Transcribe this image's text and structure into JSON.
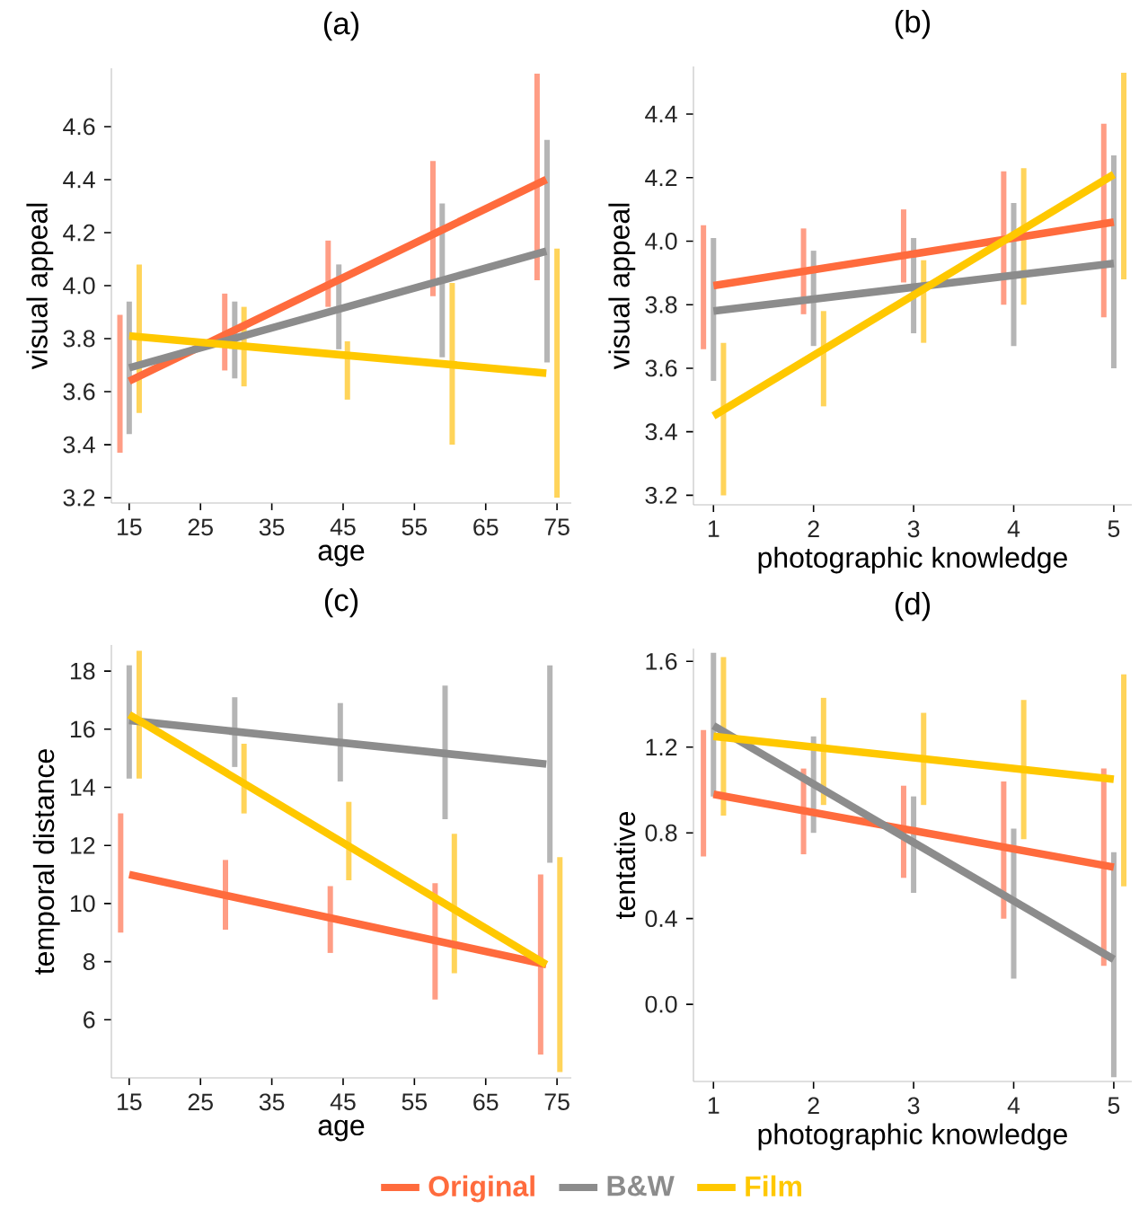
{
  "chart_data": [
    {
      "type": "line",
      "title": "(a)",
      "xlabel": "age",
      "ylabel": "visual appeal",
      "xlim": [
        12.5,
        77
      ],
      "ylim": [
        3.18,
        4.82
      ],
      "xticks": [
        15,
        25,
        35,
        45,
        55,
        65,
        75
      ],
      "yticks": [
        {
          "value": 3.2,
          "label": "3.2"
        },
        {
          "value": 3.4,
          "label": "3.4"
        },
        {
          "value": 3.6,
          "label": "3.6"
        },
        {
          "value": 3.8,
          "label": "3.8"
        },
        {
          "value": 4.0,
          "label": "4.0"
        },
        {
          "value": 4.2,
          "label": "4.2"
        },
        {
          "value": 4.4,
          "label": "4.4"
        },
        {
          "value": 4.6,
          "label": "4.6"
        }
      ],
      "series": [
        {
          "type": "bar",
          "color": "#ff9d85",
          "x": [
            13.7,
            28.4,
            42.9,
            57.6,
            72.2
          ],
          "base": [
            3.37,
            3.68,
            3.92,
            3.96,
            4.02
          ],
          "values": [
            0.52,
            0.29,
            0.25,
            0.51,
            0.78
          ]
        },
        {
          "type": "bar",
          "color": "#b5b5b5",
          "x": [
            15,
            29.8,
            44.4,
            58.9,
            73.6
          ],
          "base": [
            3.44,
            3.65,
            3.76,
            3.73,
            3.71
          ],
          "values": [
            0.5,
            0.29,
            0.32,
            0.58,
            0.84
          ]
        },
        {
          "type": "bar",
          "color": "#ffd45a",
          "x": [
            16.4,
            31.1,
            45.6,
            60.3,
            75
          ],
          "base": [
            3.52,
            3.62,
            3.57,
            3.4,
            3.2
          ],
          "values": [
            0.56,
            0.3,
            0.22,
            0.61,
            0.94
          ]
        },
        {
          "color": "#ff6b3d",
          "x": [
            15,
            73.5
          ],
          "values": [
            3.64,
            4.4
          ]
        },
        {
          "color": "#8c8c8c",
          "x": [
            15,
            73.5
          ],
          "values": [
            3.69,
            4.13
          ]
        },
        {
          "color": "#ffc800",
          "x": [
            15,
            73.5
          ],
          "values": [
            3.81,
            3.67
          ]
        }
      ]
    },
    {
      "type": "line",
      "title": "(b)",
      "xlabel": "photographic knowledge",
      "ylabel": "visual appeal",
      "xlim": [
        0.8,
        5.18
      ],
      "ylim": [
        3.17,
        4.55
      ],
      "xticks": [
        1,
        2,
        3,
        4,
        5
      ],
      "yticks": [
        {
          "value": 3.2,
          "label": "3.2"
        },
        {
          "value": 3.4,
          "label": "3.4"
        },
        {
          "value": 3.6,
          "label": "3.6"
        },
        {
          "value": 3.8,
          "label": "3.8"
        },
        {
          "value": 4.0,
          "label": "4.0"
        },
        {
          "value": 4.2,
          "label": "4.2"
        },
        {
          "value": 4.4,
          "label": "4.4"
        }
      ],
      "series": [
        {
          "type": "bar",
          "color": "#ff9d85",
          "x": [
            0.9,
            1.9,
            2.9,
            3.9,
            4.9
          ],
          "base": [
            3.66,
            3.77,
            3.87,
            3.8,
            3.76
          ],
          "values": [
            0.39,
            0.27,
            0.23,
            0.42,
            0.61
          ]
        },
        {
          "type": "bar",
          "color": "#b5b5b5",
          "x": [
            1,
            2,
            3,
            4,
            5
          ],
          "base": [
            3.56,
            3.67,
            3.71,
            3.67,
            3.6
          ],
          "values": [
            0.45,
            0.3,
            0.3,
            0.45,
            0.67
          ]
        },
        {
          "type": "bar",
          "color": "#ffd45a",
          "x": [
            1.1,
            2.1,
            3.1,
            4.1,
            5.1
          ],
          "base": [
            3.2,
            3.48,
            3.68,
            3.8,
            3.88
          ],
          "values": [
            0.48,
            0.3,
            0.26,
            0.43,
            0.65
          ]
        },
        {
          "color": "#ff6b3d",
          "x": [
            1,
            5
          ],
          "values": [
            3.86,
            4.06
          ]
        },
        {
          "color": "#8c8c8c",
          "x": [
            1,
            5
          ],
          "values": [
            3.78,
            3.93
          ]
        },
        {
          "color": "#ffc800",
          "x": [
            1,
            5
          ],
          "values": [
            3.45,
            4.21
          ]
        }
      ]
    },
    {
      "type": "line",
      "title": "(c)",
      "xlabel": "age",
      "ylabel": "temporal distance",
      "xlim": [
        12.5,
        77
      ],
      "ylim": [
        4.0,
        18.9
      ],
      "xticks": [
        15,
        25,
        35,
        45,
        55,
        65,
        75
      ],
      "yticks": [
        6,
        8,
        10,
        12,
        14,
        16,
        18
      ],
      "series": [
        {
          "type": "bar",
          "color": "#ff9d85",
          "x": [
            13.8,
            28.5,
            43.2,
            57.9,
            72.7
          ],
          "base": [
            9.0,
            9.1,
            8.3,
            6.7,
            4.8
          ],
          "values": [
            4.1,
            2.4,
            2.3,
            4.0,
            6.2
          ]
        },
        {
          "type": "bar",
          "color": "#b5b5b5",
          "x": [
            15,
            29.8,
            44.6,
            59.3,
            74
          ],
          "base": [
            14.3,
            14.7,
            14.2,
            12.9,
            11.4
          ],
          "values": [
            3.9,
            2.4,
            2.7,
            4.6,
            6.8
          ]
        },
        {
          "type": "bar",
          "color": "#ffd45a",
          "x": [
            16.4,
            31.1,
            45.8,
            60.6,
            75.4
          ],
          "base": [
            14.3,
            13.1,
            10.8,
            7.6,
            4.2
          ],
          "values": [
            4.4,
            2.4,
            2.7,
            4.8,
            7.4
          ]
        },
        {
          "color": "#ff6b3d",
          "x": [
            15,
            73.5
          ],
          "values": [
            11.0,
            7.9
          ]
        },
        {
          "color": "#8c8c8c",
          "x": [
            15,
            73.5
          ],
          "values": [
            16.3,
            14.8
          ]
        },
        {
          "color": "#ffc800",
          "x": [
            15,
            73.5
          ],
          "values": [
            16.5,
            7.9
          ]
        }
      ]
    },
    {
      "type": "line",
      "title": "(d)",
      "xlabel": "photographic knowledge",
      "ylabel": "tentative",
      "xlim": [
        0.8,
        5.18
      ],
      "ylim": [
        -0.36,
        1.66
      ],
      "legend": "bottom",
      "xticks": [
        1,
        2,
        3,
        4,
        5
      ],
      "yticks": [
        {
          "value": 0.0,
          "label": "0.0"
        },
        {
          "value": 0.4,
          "label": "0.4"
        },
        {
          "value": 0.8,
          "label": "0.8"
        },
        {
          "value": 1.2,
          "label": "1.2"
        },
        {
          "value": 1.6,
          "label": "1.6"
        }
      ],
      "series": [
        {
          "type": "bar",
          "color": "#ff9d85",
          "x": [
            0.9,
            1.9,
            2.9,
            3.9,
            4.9
          ],
          "base": [
            0.69,
            0.7,
            0.59,
            0.4,
            0.18
          ],
          "values": [
            0.59,
            0.4,
            0.43,
            0.64,
            0.92
          ]
        },
        {
          "type": "bar",
          "color": "#b5b5b5",
          "x": [
            1,
            2,
            3,
            4,
            5
          ],
          "base": [
            0.97,
            0.8,
            0.52,
            0.12,
            -0.34
          ],
          "values": [
            0.67,
            0.45,
            0.45,
            0.7,
            1.05
          ]
        },
        {
          "type": "bar",
          "color": "#ffd45a",
          "x": [
            1.1,
            2.1,
            3.1,
            4.1,
            5.1
          ],
          "base": [
            0.88,
            0.93,
            0.93,
            0.77,
            0.55
          ],
          "values": [
            0.74,
            0.5,
            0.43,
            0.65,
            0.99
          ]
        },
        {
          "name": "Original",
          "color": "#ff6b3d",
          "x": [
            1,
            5
          ],
          "values": [
            0.98,
            0.64
          ]
        },
        {
          "name": "B&W",
          "color": "#8c8c8c",
          "x": [
            1,
            5
          ],
          "values": [
            1.3,
            0.21
          ]
        },
        {
          "name": "Film",
          "color": "#ffc800",
          "x": [
            1,
            5
          ],
          "values": [
            1.25,
            1.05
          ]
        }
      ]
    }
  ]
}
